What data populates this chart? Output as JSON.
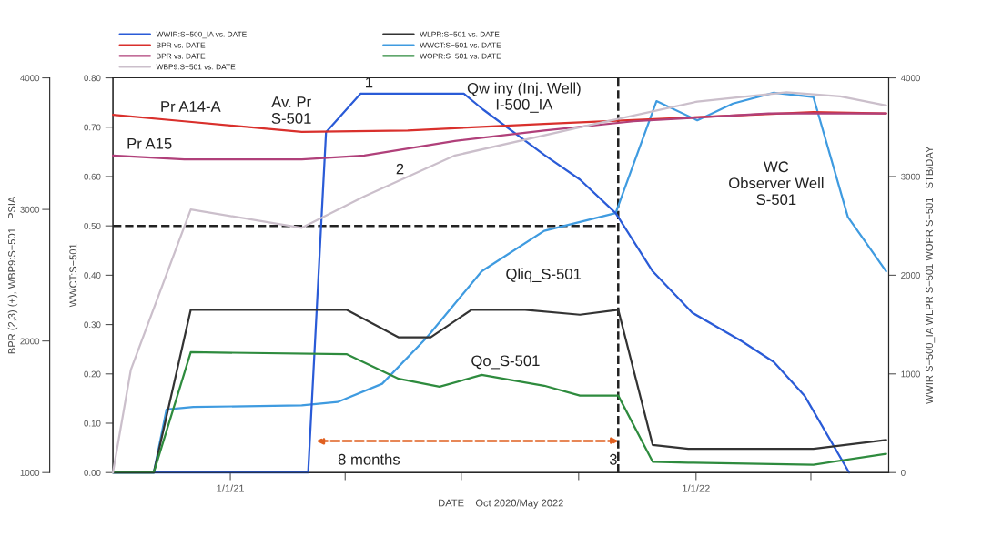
{
  "chart_data": {
    "type": "line",
    "xlabel": "DATE    Oct 2020/May 2022",
    "ylabel": "WWCT:S−501",
    "y2label": "WWIR S−500_IA WLPR S−501 WOPR S−501   STB/DAY",
    "y3label": "BPR (2,3) (+), WBP9:S−501   PSIA",
    "xlim": [
      "2020-10-01",
      "2022-06-01"
    ],
    "xticks": [
      {
        "value": "2021-01-01",
        "label": "1/1/21"
      },
      {
        "value": "2021-04-01",
        "label": null
      },
      {
        "value": "2021-07-01",
        "label": null
      },
      {
        "value": "2021-10-01",
        "label": null
      },
      {
        "value": "2022-01-01",
        "label": "1/1/22"
      },
      {
        "value": "2022-04-01",
        "label": null
      }
    ],
    "ylim": [
      0,
      0.8
    ],
    "yticks": [
      {
        "value": 0,
        "label": "0.00"
      },
      {
        "value": 0.1,
        "label": "0.10"
      },
      {
        "value": 0.2,
        "label": "0.20"
      },
      {
        "value": 0.3,
        "label": "0.30"
      },
      {
        "value": 0.4,
        "label": "0.40"
      },
      {
        "value": 0.5,
        "label": "0.50"
      },
      {
        "value": 0.6,
        "label": "0.60"
      },
      {
        "value": 0.7,
        "label": "0.70"
      },
      {
        "value": 0.8,
        "label": "0.80"
      }
    ],
    "y2lim": [
      0,
      4000
    ],
    "y2ticks": [
      0,
      1000,
      2000,
      3000,
      4000
    ],
    "y3lim": [
      1000,
      4000
    ],
    "y3ticks": [
      1000,
      2000,
      3000,
      4000
    ],
    "legend": "top",
    "grid": false,
    "marker": "none",
    "series": [
      {
        "name": "WWIR:S−500_IA vs. DATE",
        "color": "#2a5bd7",
        "axis": "y2",
        "x": [
          "2020-10-01",
          "2021-03-03",
          "2021-03-17",
          "2021-04-13",
          "2021-07-03",
          "2021-07-18",
          "2021-09-04",
          "2021-10-02",
          "2021-10-30",
          "2021-11-28",
          "2021-12-29",
          "2022-02-06",
          "2022-03-03",
          "2022-03-27",
          "2022-05-01"
        ],
        "values": [
          0,
          0,
          3450,
          3840,
          3840,
          3680,
          3220,
          2970,
          2630,
          2040,
          1620,
          1330,
          1120,
          780,
          0
        ]
      },
      {
        "name": "BPR vs. DATE",
        "color": "#d9302c",
        "axis": "y3",
        "x": [
          "2020-10-01",
          "2020-11-26",
          "2021-02-26",
          "2021-05-20",
          "2021-09-04",
          "2022-01-23",
          "2022-04-03",
          "2022-05-30"
        ],
        "values": [
          3720,
          3670,
          3590,
          3600,
          3650,
          3710,
          3740,
          3730
        ]
      },
      {
        "name": "BPR vs. DATE",
        "color": "#b0407a",
        "axis": "y3",
        "x": [
          "2020-10-01",
          "2020-11-26",
          "2021-02-26",
          "2021-04-16",
          "2021-06-26",
          "2021-09-04",
          "2021-11-13",
          "2022-02-27",
          "2022-05-30"
        ],
        "values": [
          3410,
          3380,
          3380,
          3410,
          3520,
          3600,
          3670,
          3730,
          3730
        ]
      },
      {
        "name": "WBP9:S−501 vs. DATE",
        "color": "#cbbfcb",
        "axis": "y3",
        "x": [
          "2020-10-01",
          "2020-10-15",
          "2020-12-01",
          "2021-02-26",
          "2021-04-16",
          "2021-06-26",
          "2021-10-09",
          "2022-01-02",
          "2022-03-13",
          "2022-04-24",
          "2022-05-30"
        ],
        "values": [
          1000,
          1780,
          3000,
          2860,
          3100,
          3410,
          3640,
          3820,
          3890,
          3860,
          3790
        ]
      },
      {
        "name": "WLPR:S−501 vs. DATE",
        "color": "#333333",
        "axis": "y2",
        "x": [
          "2020-10-01",
          "2020-11-02",
          "2020-12-01",
          "2021-04-02",
          "2021-05-13",
          "2021-06-07",
          "2021-07-09",
          "2021-08-20",
          "2021-10-02",
          "2021-11-01",
          "2021-11-28",
          "2021-12-26",
          "2022-04-03",
          "2022-05-30"
        ],
        "values": [
          0,
          0,
          1650,
          1650,
          1370,
          1370,
          1650,
          1650,
          1600,
          1650,
          280,
          240,
          240,
          330
        ]
      },
      {
        "name": "WWCT:S−501 vs. DATE",
        "color": "#3f9be0",
        "x": [
          "2020-10-01",
          "2020-11-02",
          "2020-11-12",
          "2020-12-03",
          "2021-02-26",
          "2021-03-26",
          "2021-04-30",
          "2021-06-04",
          "2021-07-17",
          "2021-09-04",
          "2021-10-30",
          "2021-12-01",
          "2022-01-02",
          "2022-01-30",
          "2022-03-03",
          "2022-04-03",
          "2022-04-30",
          "2022-05-30"
        ],
        "values": [
          0,
          0,
          0.128,
          0.133,
          0.136,
          0.143,
          0.18,
          0.274,
          0.408,
          0.49,
          0.526,
          0.753,
          0.714,
          0.748,
          0.77,
          0.761,
          0.518,
          0.408
        ]
      },
      {
        "name": "WOPR:S−501 vs. DATE",
        "color": "#2e8b3e",
        "axis": "y2",
        "x": [
          "2020-10-01",
          "2020-11-02",
          "2020-12-01",
          "2021-04-02",
          "2021-05-13",
          "2021-06-14",
          "2021-07-17",
          "2021-09-04",
          "2021-10-02",
          "2021-11-01",
          "2021-11-28",
          "2021-12-26",
          "2022-04-03",
          "2022-05-30"
        ],
        "values": [
          0,
          0,
          1220,
          1200,
          950,
          870,
          990,
          880,
          780,
          780,
          110,
          100,
          80,
          190
        ]
      }
    ],
    "ref_lines": [
      {
        "axis": "y",
        "value": 0.5,
        "color": "#222222",
        "line_style": "dashed"
      },
      {
        "axis": "x",
        "value": "2021-11-01",
        "color": "#222222",
        "line_style": "dashed"
      }
    ],
    "annotations": [
      "Qw iny (Inj. Well)\nI-500_IA",
      "1",
      "Pr A14-A",
      "Pr A15",
      "Av. Pr\nS-501",
      "2",
      "WC\nObserver Well\nS-501",
      "Qliq_S-501",
      "Qo_S-501",
      "8 months",
      "3"
    ]
  }
}
